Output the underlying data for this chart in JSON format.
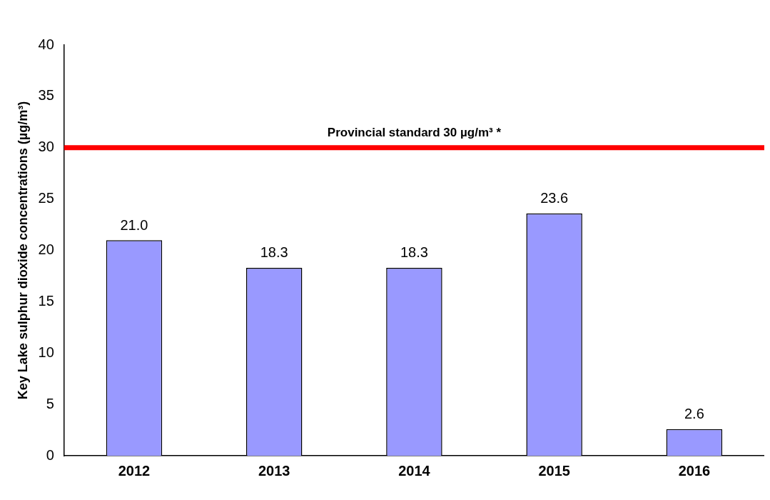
{
  "chart_data": {
    "type": "bar",
    "ylabel": "Key Lake sulphur dioxide concentrations (µg/m³)",
    "categories": [
      "2012",
      "2013",
      "2014",
      "2015",
      "2016"
    ],
    "values": [
      21.0,
      18.3,
      18.3,
      23.6,
      2.6
    ],
    "value_labels": [
      "21.0",
      "18.3",
      "18.3",
      "23.6",
      "2.6"
    ],
    "color": "#9999ff",
    "ylim": [
      0,
      40
    ],
    "yticks": [
      0,
      5,
      10,
      15,
      20,
      25,
      30,
      35,
      40
    ],
    "ref_lines": [
      {
        "axis": "y",
        "value": 30,
        "label": "Provincial standard 30 µg/m³ *",
        "color": "#ff0000"
      }
    ],
    "grid": false,
    "legend": false
  }
}
